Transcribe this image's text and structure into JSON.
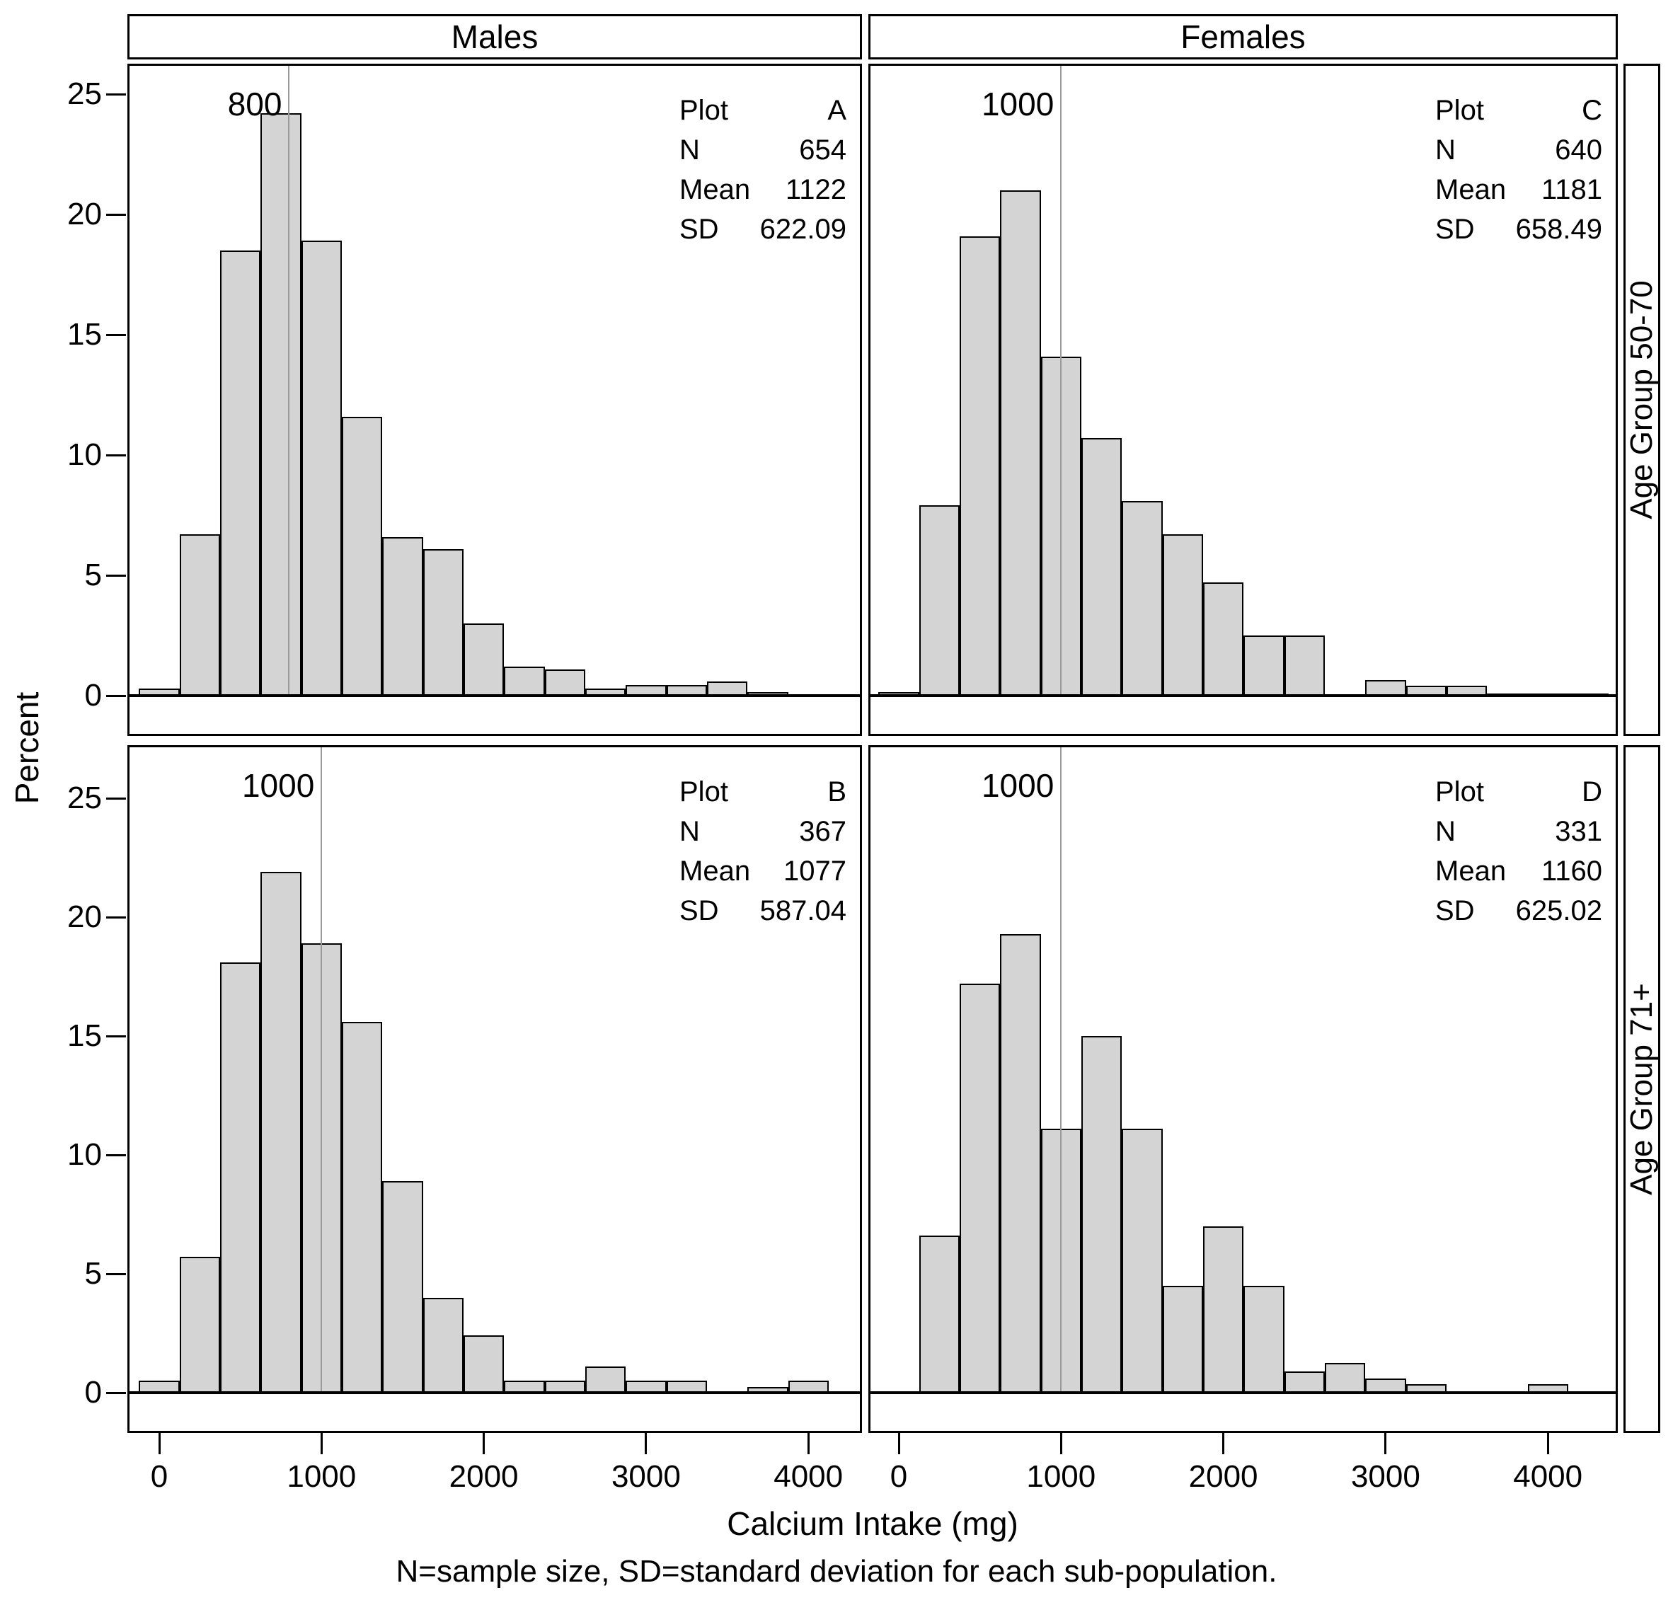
{
  "figure": {
    "col_headers": [
      "Males",
      "Females"
    ],
    "row_headers": [
      "Age Group 50-70",
      "Age Group 71+"
    ],
    "x_axis": {
      "label": "Calcium Intake (mg)",
      "ticks": [
        0,
        1000,
        2000,
        3000,
        4000
      ]
    },
    "y_axis": {
      "label": "Percent",
      "ticks": [
        0,
        5,
        10,
        15,
        20,
        25
      ]
    },
    "footnote": "N=sample size, SD=standard deviation for each sub-population.",
    "colors": {
      "bar_fill": "#d4d4d4",
      "bar_stroke": "#000000",
      "ref_line": "#9a9a9a",
      "background": "#ffffff",
      "text": "#000000"
    }
  },
  "chart_data": [
    {
      "type": "histogram",
      "plot_id": "A",
      "column": "Males",
      "row": "Age Group 50-70",
      "col_index": 0,
      "row_index": 0,
      "stats": [
        {
          "label": "Plot",
          "value": "A"
        },
        {
          "label": "N",
          "value": "654"
        },
        {
          "label": "Mean",
          "value": "1122"
        },
        {
          "label": "SD",
          "value": "622.09"
        }
      ],
      "ref_line": {
        "x": 800,
        "label": "800"
      },
      "bin_width": 250,
      "bin_centers": [
        0,
        250,
        500,
        750,
        1000,
        1250,
        1500,
        1750,
        2000,
        2250,
        2500,
        2750,
        3000,
        3250,
        3500,
        3750
      ],
      "percent": [
        0.3,
        6.7,
        18.5,
        24.2,
        18.9,
        11.6,
        6.6,
        6.1,
        3.0,
        1.2,
        1.1,
        0.3,
        0.45,
        0.45,
        0.6,
        0.15
      ],
      "xlim": [
        -200,
        4350
      ],
      "ylim": [
        0,
        26
      ]
    },
    {
      "type": "histogram",
      "plot_id": "C",
      "column": "Females",
      "row": "Age Group 50-70",
      "col_index": 1,
      "row_index": 0,
      "stats": [
        {
          "label": "Plot",
          "value": "C"
        },
        {
          "label": "N",
          "value": "640"
        },
        {
          "label": "Mean",
          "value": "1181"
        },
        {
          "label": "SD",
          "value": "658.49"
        }
      ],
      "ref_line": {
        "x": 1000,
        "label": "1000"
      },
      "bin_width": 250,
      "bin_centers": [
        0,
        250,
        500,
        750,
        1000,
        1250,
        1500,
        1750,
        2000,
        2250,
        2500,
        2750,
        3000,
        3250,
        3500,
        3750,
        4000,
        4250
      ],
      "percent": [
        0.15,
        7.9,
        19.1,
        21.0,
        14.1,
        10.7,
        8.1,
        6.7,
        4.7,
        2.5,
        2.5,
        0,
        0.65,
        0.4,
        0.4,
        0.1,
        0.1,
        0.1
      ],
      "xlim": [
        -200,
        4400
      ],
      "ylim": [
        0,
        26
      ]
    },
    {
      "type": "histogram",
      "plot_id": "B",
      "column": "Males",
      "row": "Age Group 71+",
      "col_index": 0,
      "row_index": 1,
      "stats": [
        {
          "label": "Plot",
          "value": "B"
        },
        {
          "label": "N",
          "value": "367"
        },
        {
          "label": "Mean",
          "value": "1077"
        },
        {
          "label": "SD",
          "value": "587.04"
        }
      ],
      "ref_line": {
        "x": 1000,
        "label": "1000"
      },
      "bin_width": 250,
      "bin_centers": [
        0,
        250,
        500,
        750,
        1000,
        1250,
        1500,
        1750,
        2000,
        2250,
        2500,
        2750,
        3000,
        3250,
        3500,
        3750,
        4000
      ],
      "percent": [
        0.5,
        5.7,
        18.1,
        21.9,
        18.9,
        15.6,
        8.9,
        4.0,
        2.4,
        0.5,
        0.5,
        1.1,
        0.5,
        0.5,
        0,
        0.25,
        0.5
      ],
      "xlim": [
        -200,
        4350
      ],
      "ylim": [
        0,
        26
      ]
    },
    {
      "type": "histogram",
      "plot_id": "D",
      "column": "Females",
      "row": "Age Group 71+",
      "col_index": 1,
      "row_index": 1,
      "stats": [
        {
          "label": "Plot",
          "value": "D"
        },
        {
          "label": "N",
          "value": "331"
        },
        {
          "label": "Mean",
          "value": "1160"
        },
        {
          "label": "SD",
          "value": "625.02"
        }
      ],
      "ref_line": {
        "x": 1000,
        "label": "1000"
      },
      "bin_width": 250,
      "bin_centers": [
        0,
        250,
        500,
        750,
        1000,
        1250,
        1500,
        1750,
        2000,
        2250,
        2500,
        2750,
        3000,
        3250,
        3500,
        3750,
        4000
      ],
      "percent": [
        0,
        6.6,
        17.2,
        19.3,
        11.1,
        15.0,
        11.1,
        4.5,
        7.0,
        4.5,
        0.9,
        1.25,
        0.6,
        0.35,
        0,
        0,
        0.35
      ],
      "xlim": [
        -200,
        4400
      ],
      "ylim": [
        0,
        26
      ]
    }
  ]
}
